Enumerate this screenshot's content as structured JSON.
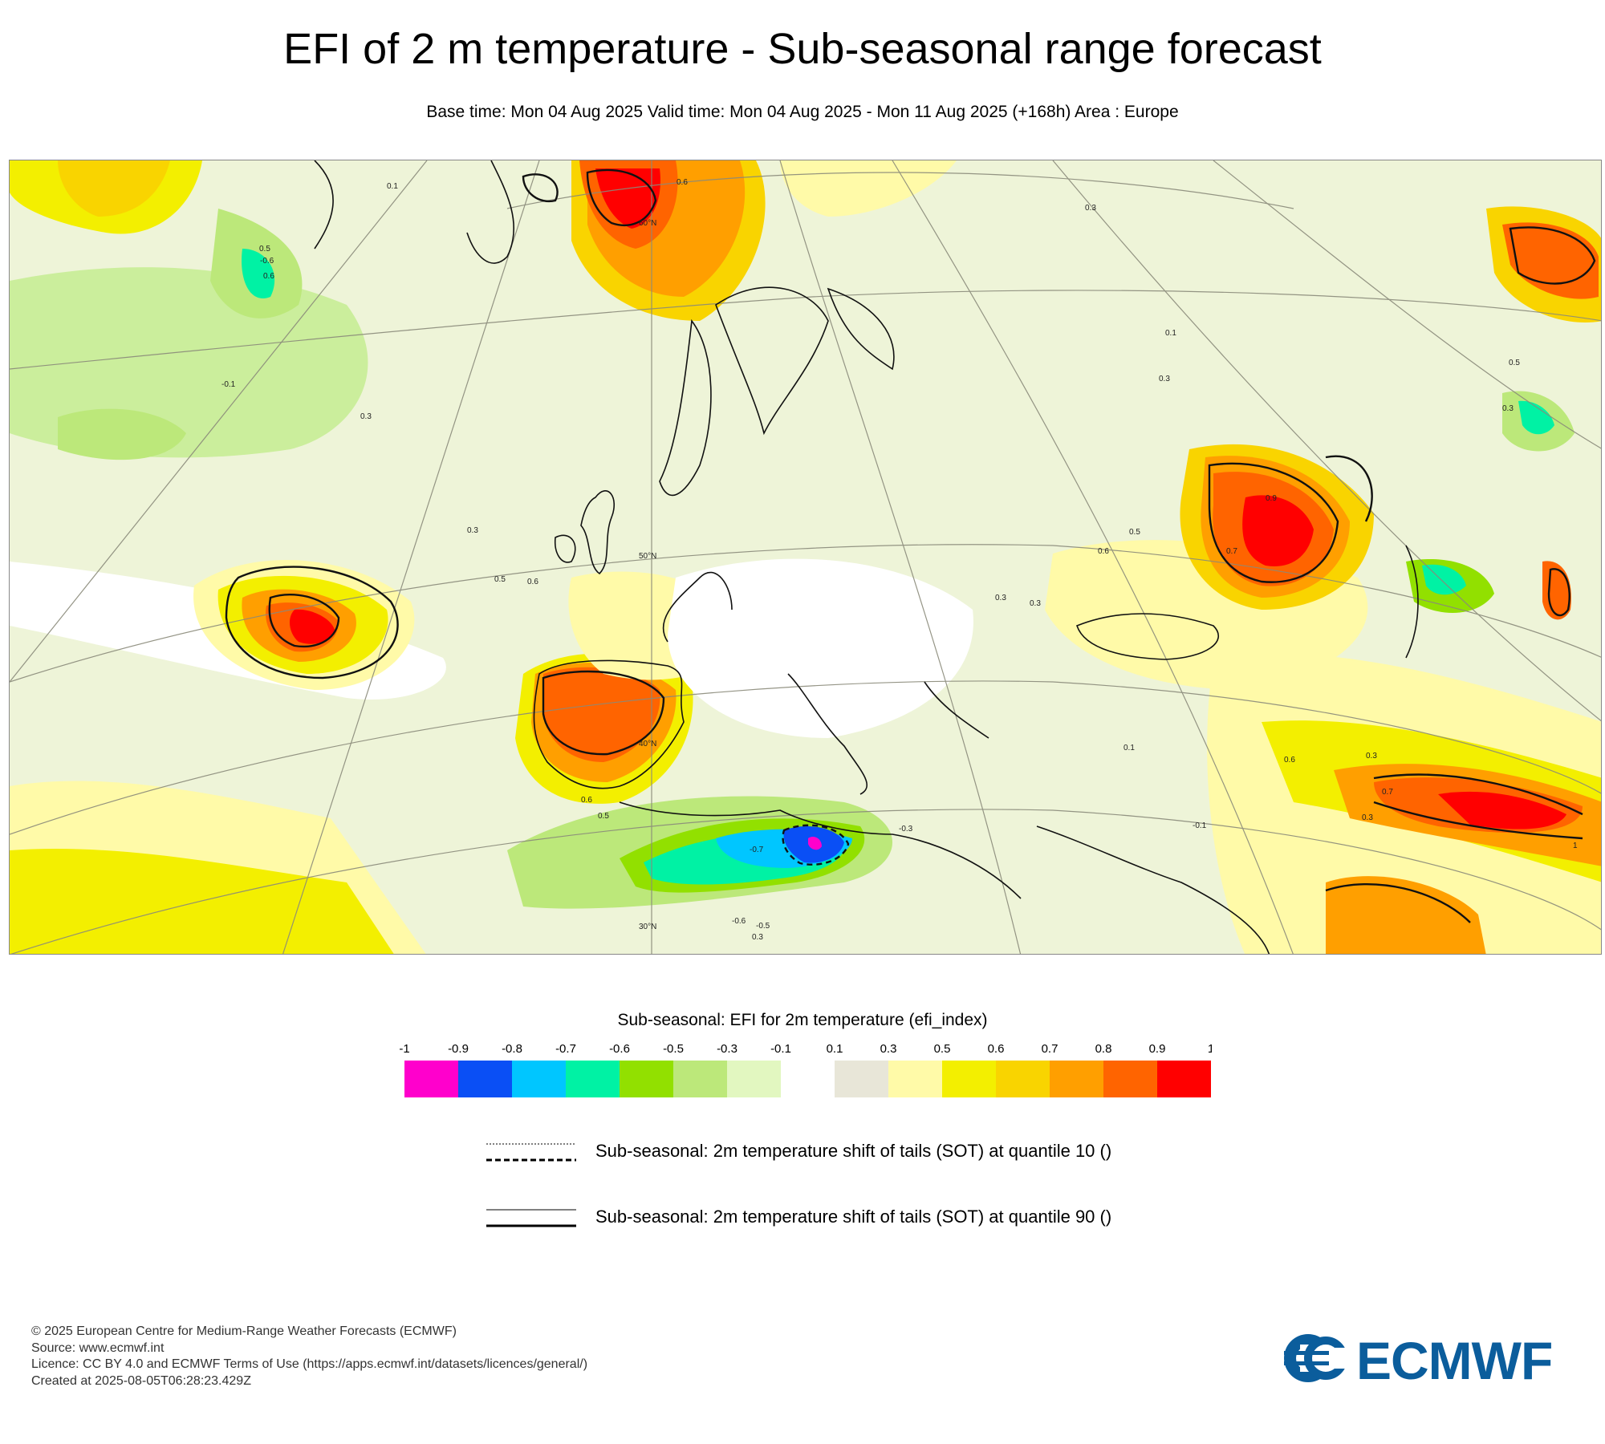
{
  "header": {
    "title": "EFI of 2 m temperature - Sub-seasonal range forecast",
    "subtitle": "Base time: Mon 04 Aug 2025 Valid time: Mon 04 Aug 2025 - Mon 11 Aug 2025 (+168h) Area : Europe"
  },
  "map": {
    "parallel_labels": [
      "60°N",
      "50°N",
      "40°N",
      "30°N"
    ],
    "contour_labels": [
      "0.1",
      "0.5",
      "0.6",
      "0.3",
      "0.6",
      "-0.1",
      "0.3",
      "0.3",
      "0.5",
      "0.6",
      "0.9",
      "0.7",
      "0.5",
      "0.6",
      "0.3",
      "0.3",
      "0.1",
      "0.6",
      "0.3",
      "0.7",
      "0.3",
      "-0.7",
      "-0.6",
      "-0.3",
      "0.6",
      "0.5",
      "-0.1",
      "0.3",
      "-0.5",
      "-0.6",
      "0.1",
      "0.3",
      "0.5",
      "0.3",
      "1"
    ]
  },
  "colorbar": {
    "title": "Sub-seasonal: EFI for 2m temperature (efi_index)",
    "tick_labels": [
      "-1",
      "-0.9",
      "-0.8",
      "-0.7",
      "-0.6",
      "-0.5",
      "-0.3",
      "-0.1",
      "0.1",
      "0.3",
      "0.5",
      "0.6",
      "0.7",
      "0.8",
      "0.9",
      "1"
    ],
    "colors": [
      "#ff00cc",
      "#0a4ff5",
      "#00c6ff",
      "#00f2a4",
      "#92e000",
      "#bce87a",
      "#e2f7c0",
      "#ffffff",
      "#e8e6d8",
      "#fffaa8",
      "#f3ef00",
      "#f9d400",
      "#ff9f00",
      "#ff6400",
      "#ff0000"
    ]
  },
  "legend": {
    "q10_label": "Sub-seasonal: 2m temperature shift of tails (SOT) at quantile 10 ()",
    "q90_label": "Sub-seasonal: 2m temperature shift of tails (SOT) at quantile 90 ()"
  },
  "footer": {
    "line1": "© 2025 European Centre for Medium-Range Weather Forecasts (ECMWF)",
    "line2": "Source: www.ecmwf.int",
    "line3": "Licence: CC BY 4.0 and ECMWF Terms of Use (https://apps.ecmwf.int/datasets/licences/general/)",
    "line4": "Created at 2025-08-05T06:28:23.429Z",
    "logo_text": "ECMWF"
  }
}
